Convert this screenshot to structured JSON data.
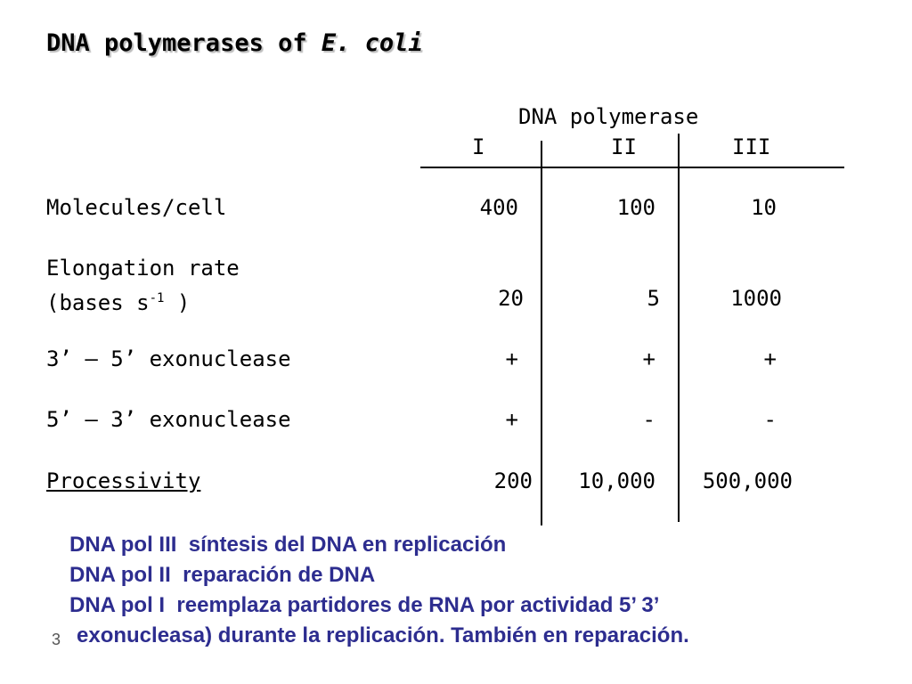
{
  "title": {
    "main": "DNA polymerases of ",
    "italic": "E. coli"
  },
  "table": {
    "group_header": "DNA polymerase",
    "columns": [
      "I",
      "II",
      "III"
    ],
    "rows": [
      {
        "label": "Molecules/cell",
        "values": [
          "400",
          "100",
          "10"
        ]
      },
      {
        "label": "Elongation rate",
        "label2": "(bases s",
        "label2_sup": "-1",
        "label2_end": " )",
        "values": [
          "20",
          "5",
          "1000"
        ]
      },
      {
        "label": "3’ – 5’ exonuclease",
        "values": [
          "+",
          "+",
          "+"
        ]
      },
      {
        "label": "5’ – 3’ exonuclease",
        "values": [
          "+",
          "-",
          "-"
        ]
      },
      {
        "label": "Processivity",
        "values": [
          "200",
          "10,000",
          "500,000"
        ]
      }
    ]
  },
  "notes": [
    "DNA pol III  síntesis del DNA en replicación",
    "DNA pol II  reparación de DNA",
    "DNA pol I  reemplaza partidores de RNA por actividad 5’ 3’",
    "exonucleasa) durante la replicación. También en reparación."
  ],
  "page_number": "3"
}
